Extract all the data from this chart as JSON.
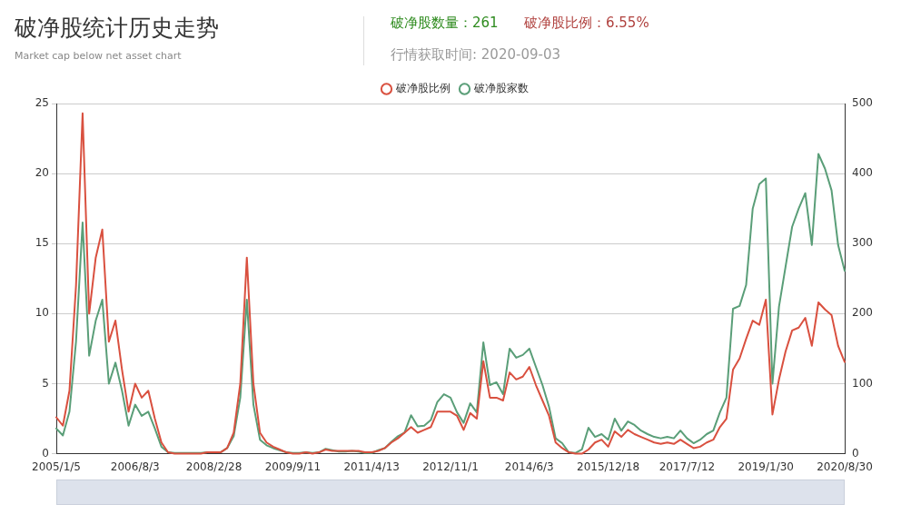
{
  "chart_data": {
    "type": "line",
    "title": "破净股统计历史走势",
    "subtitle": "Market cap below net asset chart",
    "annotations": [
      "破净股数量：261",
      "破净股比例：6.55%",
      "行情获取时间: 2020-09-03"
    ],
    "categories": [
      "2005/1/5",
      null,
      null,
      null,
      null,
      null,
      null,
      null,
      null,
      null,
      null,
      null,
      "2006/8/3",
      null,
      null,
      null,
      null,
      null,
      null,
      null,
      null,
      null,
      null,
      null,
      "2008/2/28",
      null,
      null,
      null,
      null,
      null,
      null,
      null,
      null,
      null,
      null,
      null,
      "2009/9/11",
      null,
      null,
      null,
      null,
      null,
      null,
      null,
      null,
      null,
      null,
      null,
      "2011/4/13",
      null,
      null,
      null,
      null,
      null,
      null,
      null,
      null,
      null,
      null,
      null,
      "2012/11/1",
      null,
      null,
      null,
      null,
      null,
      null,
      null,
      null,
      null,
      null,
      null,
      "2014/6/3",
      null,
      null,
      null,
      null,
      null,
      null,
      null,
      null,
      null,
      null,
      null,
      "2015/12/18",
      null,
      null,
      null,
      null,
      null,
      null,
      null,
      null,
      null,
      null,
      null,
      "2017/7/12",
      null,
      null,
      null,
      null,
      null,
      null,
      null,
      null,
      null,
      null,
      null,
      "2019/1/30",
      null,
      null,
      null,
      null,
      null,
      null,
      null,
      null,
      null,
      null,
      null,
      "2020/8/30"
    ],
    "series": [
      {
        "name": "破净股比例",
        "color": "#d9503f",
        "values": [
          2.6,
          2.0,
          4.5,
          12,
          24.3,
          10,
          14,
          16,
          8,
          9.5,
          6,
          3,
          5,
          4,
          4.5,
          2.5,
          0.8,
          0.1,
          0,
          0,
          0,
          0,
          0,
          0.1,
          0.1,
          0.1,
          0.4,
          1.5,
          5,
          14,
          5,
          1.5,
          0.8,
          0.5,
          0.3,
          0.1,
          0,
          0,
          0.1,
          0,
          0.1,
          0.3,
          0.2,
          0.2,
          0.2,
          0.2,
          0.2,
          0.1,
          0.1,
          0.2,
          0.4,
          0.8,
          1.1,
          1.5,
          1.9,
          1.5,
          1.7,
          1.9,
          3.0,
          3.0,
          3.0,
          2.7,
          1.7,
          2.9,
          2.5,
          6.6,
          4.0,
          4.0,
          3.8,
          5.8,
          5.3,
          5.5,
          6.2,
          4.9,
          3.8,
          2.7,
          0.8,
          0.4,
          0.1,
          0,
          0,
          0.3,
          0.8,
          1.0,
          0.5,
          1.6,
          1.2,
          1.7,
          1.4,
          1.2,
          1.0,
          0.8,
          0.7,
          0.8,
          0.7,
          1.0,
          0.7,
          0.4,
          0.5,
          0.8,
          1.0,
          1.9,
          2.5,
          6.0,
          6.8,
          8.2,
          9.5,
          9.2,
          11.0,
          2.8,
          5.3,
          7.3,
          8.8,
          9.0,
          9.7,
          7.7,
          10.8,
          10.3,
          9.9,
          7.7,
          6.55
        ]
      },
      {
        "name": "破净股家数",
        "color": "#5a9e78",
        "axis": "y2",
        "values": [
          36,
          26,
          60,
          160,
          330,
          140,
          190,
          220,
          100,
          130,
          90,
          40,
          70,
          54,
          60,
          36,
          10,
          2,
          1,
          1,
          1,
          1,
          1,
          2,
          2,
          2,
          8,
          25,
          80,
          220,
          70,
          20,
          12,
          8,
          5,
          2,
          1,
          1,
          2,
          1,
          2,
          7,
          5,
          3,
          3,
          4,
          3,
          1,
          1,
          5,
          8,
          17,
          25,
          30,
          55,
          39,
          40,
          48,
          74,
          85,
          80,
          59,
          44,
          72,
          59,
          159,
          98,
          102,
          85,
          150,
          137,
          141,
          150,
          124,
          98,
          67,
          22,
          15,
          2,
          1,
          6,
          37,
          24,
          28,
          20,
          50,
          33,
          46,
          41,
          33,
          28,
          24,
          22,
          24,
          22,
          33,
          22,
          15,
          20,
          28,
          33,
          59,
          80,
          207,
          211,
          241,
          350,
          385,
          393,
          100,
          210,
          267,
          324,
          350,
          372,
          298,
          428,
          407,
          376,
          298,
          261
        ]
      }
    ],
    "ylim": [
      0,
      25
    ],
    "yticks": [
      0,
      5,
      10,
      15,
      20,
      25
    ],
    "y2lim": [
      0,
      500
    ],
    "y2ticks": [
      0,
      100,
      200,
      300,
      400,
      500
    ],
    "grid": "y",
    "legend": "top"
  }
}
